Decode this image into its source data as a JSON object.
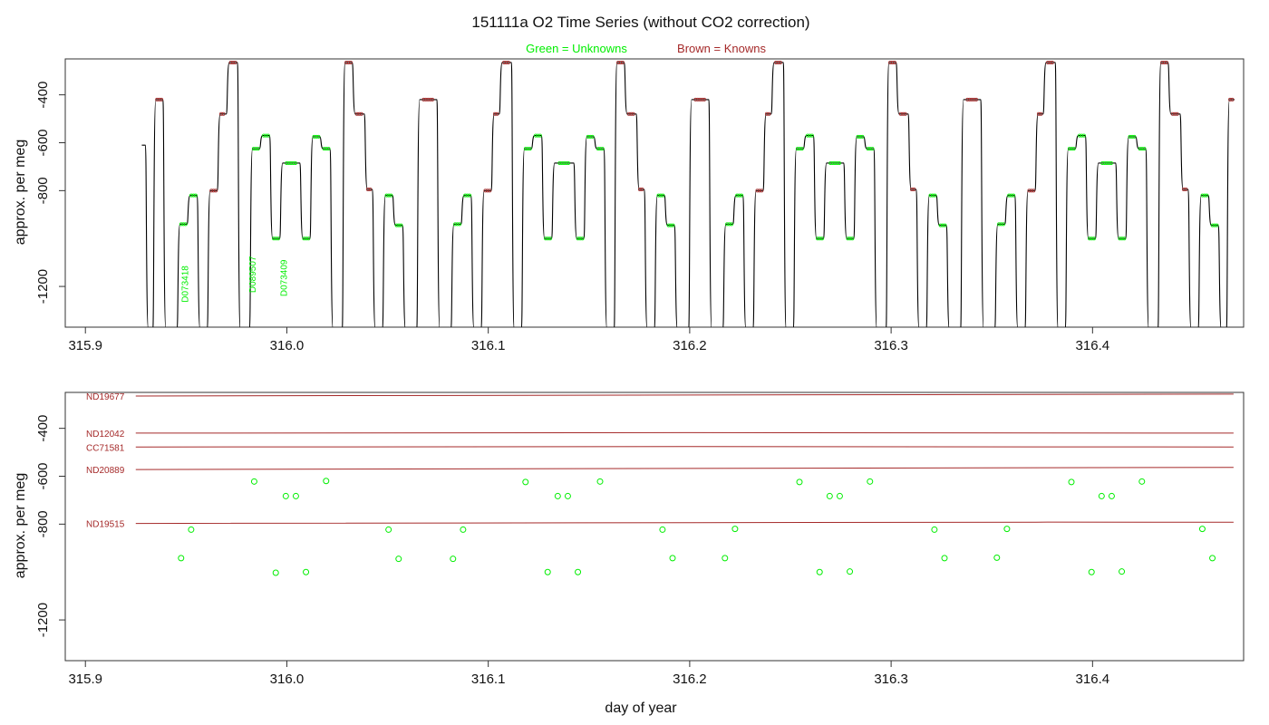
{
  "title": "151111a   O2 Time Series (without CO2 correction)",
  "legend": {
    "unknowns": "Green = Unknowns",
    "knowns": "Brown = Knowns"
  },
  "colors": {
    "unknown": "#00ee00",
    "known": "#a52a2a",
    "trace": "#000000",
    "axis": "#333333"
  },
  "chart_data": [
    {
      "type": "line",
      "panel": "top",
      "title": "151111a   O2 Time Series (without CO2 correction)",
      "xlabel": "",
      "ylabel": "approx. per meg",
      "xlim": [
        315.89,
        316.475
      ],
      "ylim": [
        -1370,
        -250
      ],
      "x_ticks": [
        "315.9",
        "316.0",
        "316.1",
        "316.2",
        "316.3",
        "316.4"
      ],
      "y_ticks": [
        "-400",
        "-600",
        "-800",
        "-1200"
      ],
      "trace_start": [
        315.928,
        -610
      ],
      "steps": [
        [
          315.9298,
          -1380
        ],
        [
          315.9335,
          -420
        ],
        [
          315.9385,
          -1380
        ],
        [
          315.9455,
          -940
        ],
        [
          315.9505,
          -820
        ],
        [
          315.9555,
          -1380
        ],
        [
          315.9605,
          -800
        ],
        [
          315.9655,
          -480
        ],
        [
          315.97,
          -265
        ],
        [
          315.9755,
          -1380
        ],
        [
          315.9815,
          -625
        ],
        [
          315.9865,
          -570
        ],
        [
          315.9915,
          -1000
        ],
        [
          315.9965,
          -685
        ],
        [
          316.0065,
          -1000
        ],
        [
          316.0115,
          -575
        ],
        [
          316.0165,
          -625
        ],
        [
          316.0215,
          -1380
        ],
        [
          316.0275,
          -265
        ],
        [
          316.0325,
          -480
        ],
        [
          316.0385,
          -795
        ],
        [
          316.0425,
          -1380
        ],
        [
          316.0475,
          -820
        ],
        [
          316.0525,
          -945
        ],
        [
          316.0575,
          -1380
        ],
        [
          316.0645,
          -420
        ],
        [
          316.0745,
          -1380
        ],
        [
          316.0815,
          -940
        ],
        [
          316.0865,
          -820
        ],
        [
          316.0915,
          -1380
        ],
        [
          316.0965,
          -800
        ],
        [
          316.1015,
          -480
        ],
        [
          316.1055,
          -265
        ],
        [
          316.1115,
          -1380
        ],
        [
          316.1165,
          -625
        ],
        [
          316.1215,
          -570
        ],
        [
          316.1265,
          -1000
        ],
        [
          316.1315,
          -685
        ],
        [
          316.1425,
          -1000
        ],
        [
          316.1475,
          -575
        ],
        [
          316.1525,
          -625
        ],
        [
          316.1575,
          -1380
        ],
        [
          316.1625,
          -265
        ],
        [
          316.1675,
          -480
        ],
        [
          316.1735,
          -795
        ],
        [
          316.1775,
          -1380
        ],
        [
          316.1825,
          -820
        ],
        [
          316.1875,
          -945
        ],
        [
          316.1925,
          -1380
        ],
        [
          316.1995,
          -420
        ],
        [
          316.2095,
          -1380
        ],
        [
          316.2165,
          -940
        ],
        [
          316.2215,
          -820
        ],
        [
          316.2265,
          -1380
        ],
        [
          316.2315,
          -800
        ],
        [
          316.2365,
          -480
        ],
        [
          316.2405,
          -265
        ],
        [
          316.2465,
          -1380
        ],
        [
          316.2515,
          -625
        ],
        [
          316.2565,
          -570
        ],
        [
          316.2615,
          -1000
        ],
        [
          316.2665,
          -685
        ],
        [
          316.2765,
          -1000
        ],
        [
          316.2815,
          -575
        ],
        [
          316.2865,
          -625
        ],
        [
          316.2915,
          -1380
        ],
        [
          316.2975,
          -265
        ],
        [
          316.3025,
          -480
        ],
        [
          316.3085,
          -795
        ],
        [
          316.3125,
          -1380
        ],
        [
          316.3175,
          -820
        ],
        [
          316.3225,
          -945
        ],
        [
          316.3275,
          -1380
        ],
        [
          316.3345,
          -420
        ],
        [
          316.3445,
          -1380
        ],
        [
          316.3515,
          -940
        ],
        [
          316.3565,
          -820
        ],
        [
          316.3615,
          -1380
        ],
        [
          316.3665,
          -800
        ],
        [
          316.3715,
          -480
        ],
        [
          316.3755,
          -265
        ],
        [
          316.3815,
          -1380
        ],
        [
          316.3865,
          -625
        ],
        [
          316.3915,
          -570
        ],
        [
          316.3965,
          -1000
        ],
        [
          316.4015,
          -685
        ],
        [
          316.4115,
          -1000
        ],
        [
          316.4165,
          -575
        ],
        [
          316.4215,
          -625
        ],
        [
          316.4265,
          -1380
        ],
        [
          316.4325,
          -265
        ],
        [
          316.4375,
          -480
        ],
        [
          316.4435,
          -795
        ],
        [
          316.4475,
          -1380
        ],
        [
          316.4525,
          -820
        ],
        [
          316.4575,
          -945
        ],
        [
          316.4625,
          -1380
        ],
        [
          316.4665,
          -420
        ]
      ],
      "trace_end": 316.4705,
      "sample_labels": [
        {
          "text": "D073418",
          "x": 315.951,
          "y": -1190,
          "clip_y": -1370
        },
        {
          "text": "D089507",
          "x": 315.9845,
          "y": -1150
        },
        {
          "text": "D073409",
          "x": 316.0,
          "y": -1165
        }
      ]
    },
    {
      "type": "scatter",
      "panel": "bottom",
      "xlabel": "day of year",
      "ylabel": "approx. per meg",
      "xlim": [
        315.89,
        316.475
      ],
      "ylim": [
        -1370,
        -250
      ],
      "x_ticks": [
        "315.9",
        "316.0",
        "316.1",
        "316.2",
        "316.3",
        "316.4"
      ],
      "y_ticks": [
        "-400",
        "-600",
        "-800",
        "-1200"
      ],
      "knowns": [
        {
          "name": "ND19677",
          "start": [
            315.925,
            -265
          ],
          "end": [
            316.47,
            -257
          ]
        },
        {
          "name": "ND12042",
          "start": [
            315.925,
            -420
          ],
          "end": [
            316.47,
            -420
          ]
        },
        {
          "name": "CC71581",
          "start": [
            315.925,
            -478
          ],
          "end": [
            316.47,
            -478
          ]
        },
        {
          "name": "ND20889",
          "start": [
            315.925,
            -572
          ],
          "end": [
            316.47,
            -563
          ]
        },
        {
          "name": "ND19515",
          "start": [
            315.925,
            -797
          ],
          "end": [
            316.47,
            -792
          ]
        }
      ],
      "unknowns": [
        [
          315.9475,
          -942
        ],
        [
          315.9525,
          -823
        ],
        [
          315.9838,
          -622
        ],
        [
          315.9945,
          -1003
        ],
        [
          315.9995,
          -683
        ],
        [
          316.0045,
          -683
        ],
        [
          316.0095,
          -1000
        ],
        [
          316.0195,
          -620
        ],
        [
          316.0505,
          -823
        ],
        [
          316.0555,
          -945
        ],
        [
          316.0825,
          -945
        ],
        [
          316.0875,
          -823
        ],
        [
          316.1185,
          -624
        ],
        [
          316.1295,
          -1000
        ],
        [
          316.1345,
          -683
        ],
        [
          316.1395,
          -683
        ],
        [
          316.1445,
          -1000
        ],
        [
          316.1555,
          -622
        ],
        [
          316.1865,
          -823
        ],
        [
          316.1915,
          -942
        ],
        [
          316.2175,
          -942
        ],
        [
          316.2225,
          -820
        ],
        [
          316.2545,
          -624
        ],
        [
          316.2645,
          -1000
        ],
        [
          316.2695,
          -683
        ],
        [
          316.2745,
          -683
        ],
        [
          316.2795,
          -998
        ],
        [
          316.2895,
          -622
        ],
        [
          316.3215,
          -823
        ],
        [
          316.3265,
          -942
        ],
        [
          316.3525,
          -940
        ],
        [
          316.3575,
          -820
        ],
        [
          316.3895,
          -624
        ],
        [
          316.3995,
          -1000
        ],
        [
          316.4045,
          -683
        ],
        [
          316.4095,
          -683
        ],
        [
          316.4145,
          -998
        ],
        [
          316.4245,
          -622
        ],
        [
          316.4545,
          -820
        ],
        [
          316.4595,
          -942
        ]
      ]
    }
  ]
}
